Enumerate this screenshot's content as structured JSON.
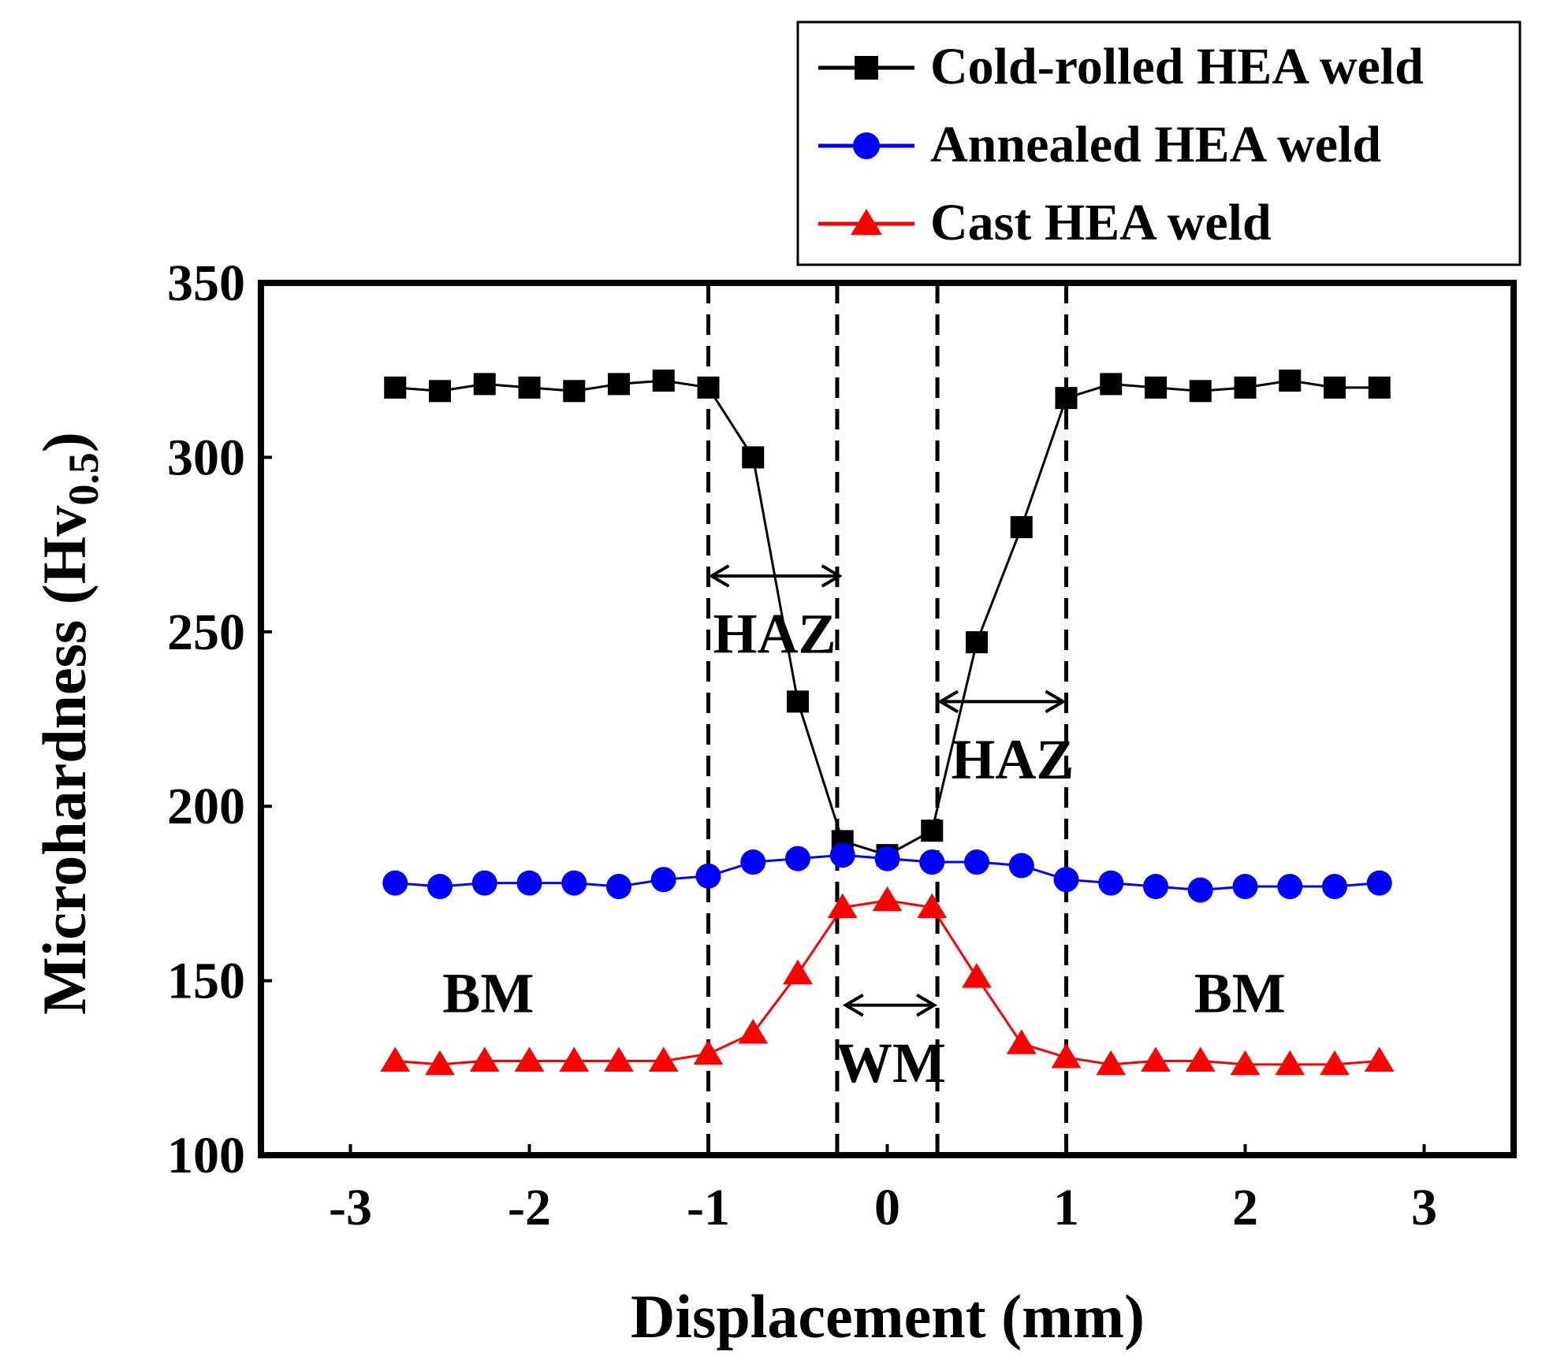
{
  "chart_data": {
    "type": "line",
    "title": "",
    "xlabel": "Displacement (mm)",
    "ylabel": {
      "main": "Microhardness (Hv",
      "subscript": "0.5",
      "close": ")"
    },
    "xlim": [
      -3.5,
      3.5
    ],
    "ylim": [
      100,
      350
    ],
    "xticks": [
      -3,
      -2,
      -1,
      0,
      1,
      2,
      3
    ],
    "xtick_labels": [
      "-3",
      "-2",
      "-1",
      "0",
      "1",
      "2",
      "3"
    ],
    "yticks": [
      100,
      150,
      200,
      250,
      300,
      350
    ],
    "ytick_labels": [
      "100",
      "150",
      "200",
      "250",
      "300",
      "350"
    ],
    "grid": false,
    "legend_position": "top-right",
    "x": [
      -2.75,
      -2.5,
      -2.25,
      -2.0,
      -1.75,
      -1.5,
      -1.25,
      -1.0,
      -0.75,
      -0.5,
      -0.25,
      0.0,
      0.25,
      0.5,
      0.75,
      1.0,
      1.25,
      1.5,
      1.75,
      2.0,
      2.25,
      2.5,
      2.75
    ],
    "series": [
      {
        "name": "Cold-rolled HEA weld",
        "color": "#000000",
        "marker": "square",
        "values": [
          320,
          319,
          321,
          320,
          319,
          321,
          322,
          320,
          300,
          230,
          190,
          186,
          193,
          247,
          280,
          317,
          321,
          320,
          319,
          320,
          322,
          320,
          320
        ]
      },
      {
        "name": "Annealed HEA weld",
        "color": "#0000ff",
        "marker": "circle",
        "values": [
          178,
          177,
          178,
          178,
          178,
          177,
          179,
          180,
          184,
          185,
          186,
          185,
          184,
          184,
          183,
          179,
          178,
          177,
          176,
          177,
          177,
          177,
          178
        ]
      },
      {
        "name": "Cast HEA weld",
        "color": "#ff0000",
        "marker": "triangle",
        "values": [
          127,
          126,
          127,
          127,
          127,
          127,
          127,
          129,
          135,
          152,
          171,
          173,
          171,
          151,
          132,
          128,
          126,
          127,
          127,
          126,
          126,
          126,
          127
        ]
      }
    ],
    "boundaries": [
      -1.0,
      -0.28,
      0.28,
      1.0
    ],
    "annotations": [
      {
        "label": "HAZ",
        "from": -1.0,
        "to": -0.25,
        "arrow_y": 266,
        "text_x": -0.63,
        "text_y": 244
      },
      {
        "label": "HAZ",
        "from": 0.28,
        "to": 1.0,
        "arrow_y": 230,
        "text_x": 0.7,
        "text_y": 208
      },
      {
        "label": "WM",
        "from": -0.25,
        "to": 0.28,
        "arrow_y": 143,
        "text_x": 0.02,
        "text_y": 121
      },
      {
        "label": "BM",
        "from": null,
        "to": null,
        "arrow_y": null,
        "text_x": -2.23,
        "text_y": 141
      },
      {
        "label": "BM",
        "from": null,
        "to": null,
        "arrow_y": null,
        "text_x": 1.97,
        "text_y": 141
      }
    ]
  }
}
